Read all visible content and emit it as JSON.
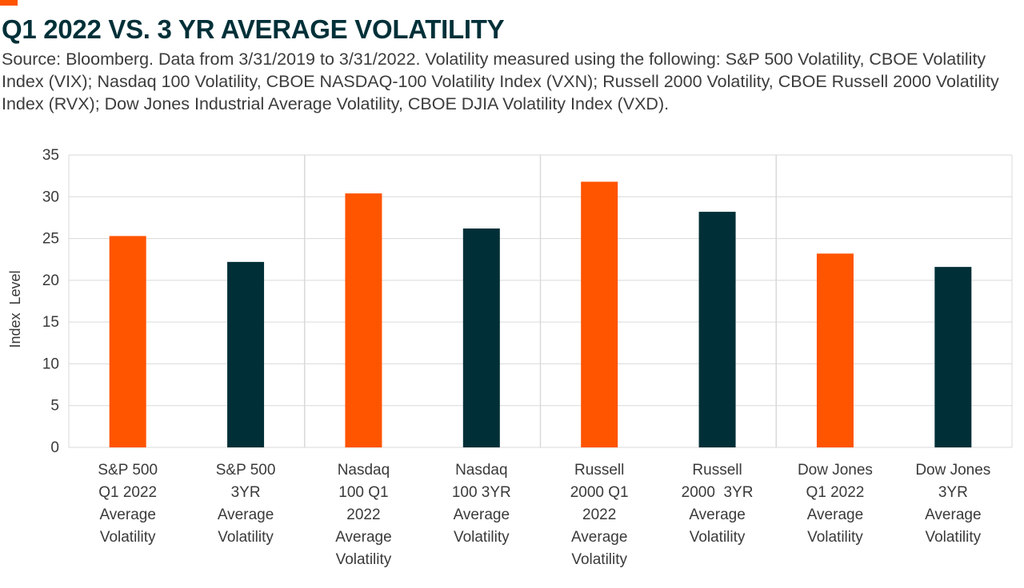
{
  "title": "Q1 2022 VS. 3 YR AVERAGE VOLATILITY",
  "subtitle": "Source: Bloomberg. Data from 3/31/2019 to 3/31/2022. Volatility measured using the following: S&P 500 Volatility, CBOE Volatility Index (VIX); Nasdaq 100 Volatility, CBOE NASDAQ-100 Volatility Index (VXN); Russell 2000 Volatility, CBOE Russell 2000 Volatility Index (RVX); Dow Jones Industrial Average Volatility, CBOE DJIA Volatility Index (VXD).",
  "colors": {
    "accent": "#FF5400",
    "q1": "#FF5400",
    "avg3yr": "#002F37",
    "grid": "#D9D9D9"
  },
  "chart_data": {
    "type": "bar",
    "title": "Q1 2022 VS. 3 YR AVERAGE VOLATILITY",
    "ylabel": "Index  Level",
    "xlabel": "",
    "ylim": [
      0,
      35
    ],
    "yticks": [
      0,
      5,
      10,
      15,
      20,
      25,
      30,
      35
    ],
    "grid": true,
    "categories": [
      [
        "S&P 500",
        "Q1 2022",
        "Average",
        "Volatility"
      ],
      [
        "S&P 500",
        "3YR",
        "Average",
        "Volatility"
      ],
      [
        "Nasdaq",
        "100 Q1",
        "2022",
        "Average",
        "Volatility"
      ],
      [
        "Nasdaq",
        "100 3YR",
        "Average",
        "Volatility"
      ],
      [
        "Russell",
        "2000 Q1",
        "2022",
        "Average",
        "Volatility"
      ],
      [
        "Russell",
        "2000  3YR",
        "Average",
        "Volatility"
      ],
      [
        "Dow Jones",
        "Q1 2022",
        "Average",
        "Volatility"
      ],
      [
        "Dow Jones",
        "3YR",
        "Average",
        "Volatility"
      ]
    ],
    "values": [
      25.3,
      22.2,
      30.4,
      26.2,
      31.8,
      28.2,
      23.2,
      21.6
    ],
    "bar_colors": [
      "#FF5400",
      "#002F37",
      "#FF5400",
      "#002F37",
      "#FF5400",
      "#002F37",
      "#FF5400",
      "#002F37"
    ]
  }
}
